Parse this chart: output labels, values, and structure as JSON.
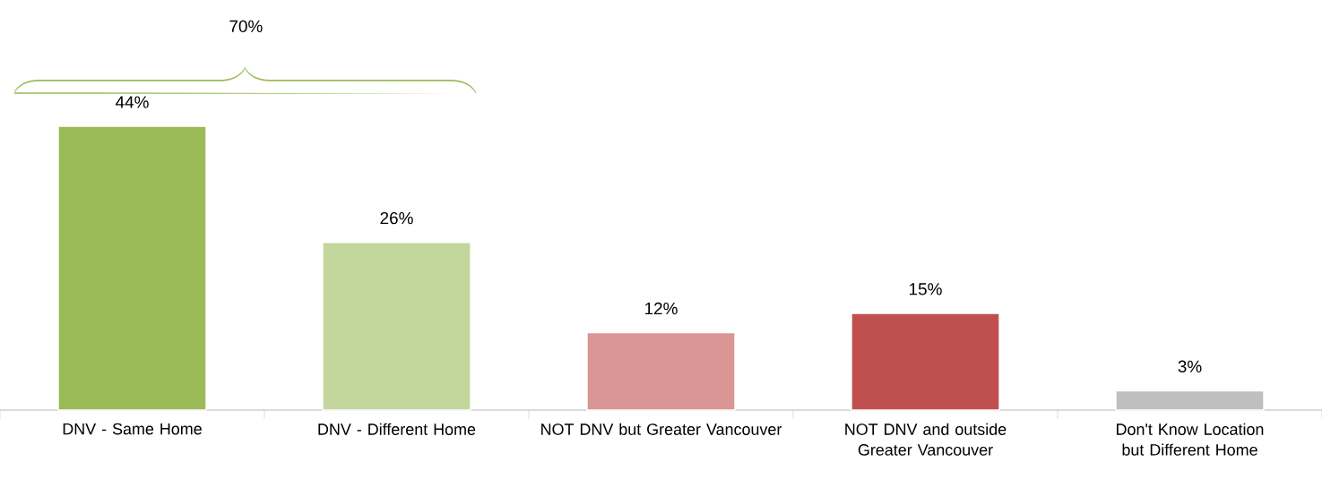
{
  "chart_data": {
    "type": "bar",
    "categories": [
      "DNV - Same Home",
      "DNV - Different Home",
      "NOT DNV but Greater Vancouver",
      "NOT DNV and outside Greater Vancouver",
      "Don't Know Location but Different Home"
    ],
    "values": [
      44,
      26,
      12,
      15,
      3
    ],
    "colors": [
      "#9bbb59",
      "#c3d69b",
      "#d99694",
      "#c0504d",
      "#bfbfbf"
    ],
    "value_labels": [
      "44%",
      "26%",
      "12%",
      "15%",
      "3%"
    ],
    "annotations": [
      "70%"
    ]
  }
}
